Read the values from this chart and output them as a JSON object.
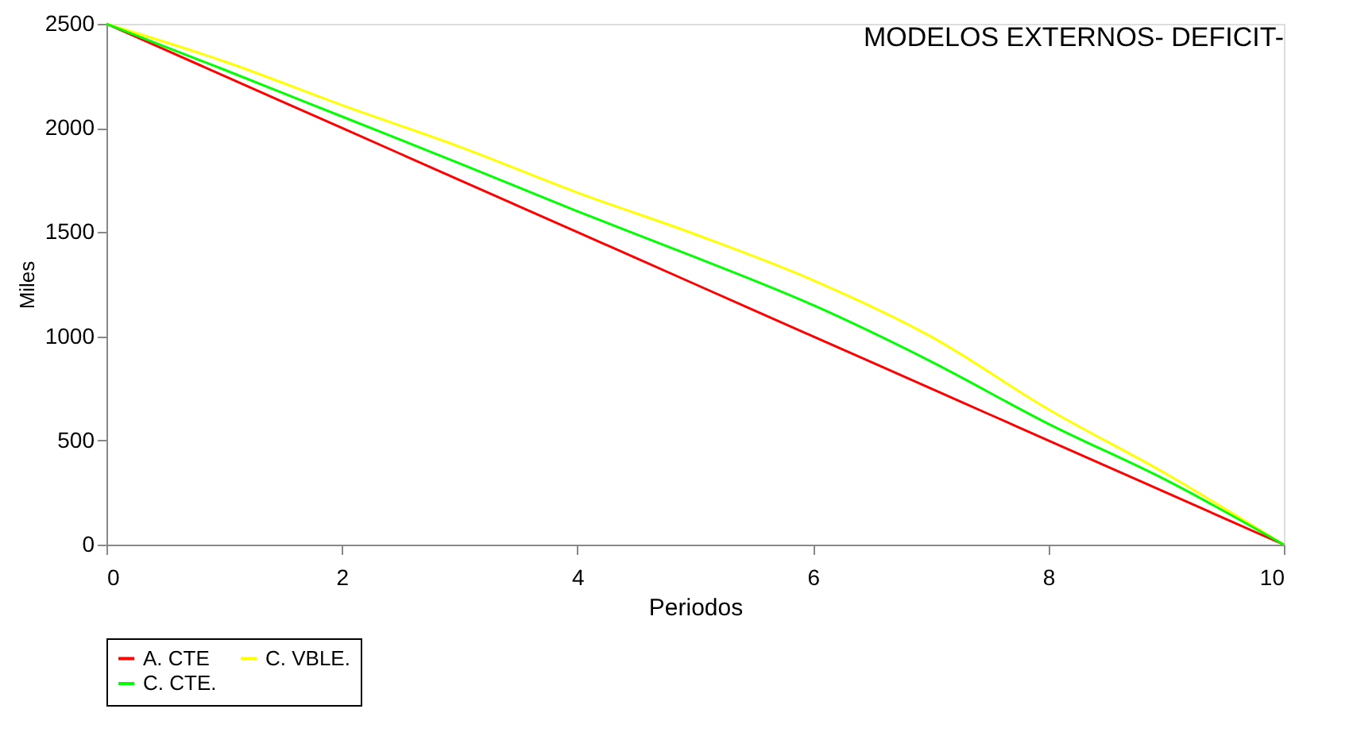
{
  "chart_data": {
    "type": "line",
    "title": "MODELOS EXTERNOS- DEFICIT-",
    "xlabel": "Periodos",
    "ylabel": "Miles",
    "x": [
      0,
      1,
      2,
      3,
      4,
      5,
      6,
      7,
      8,
      9,
      10
    ],
    "series": [
      {
        "name": "A. CTE",
        "color": "#ff0000",
        "values": [
          2500,
          2250,
          2000,
          1750,
          1500,
          1250,
          1000,
          750,
          500,
          250,
          0
        ]
      },
      {
        "name": "C. VBLE.",
        "color": "#ffff00",
        "values": [
          2500,
          2320,
          2110,
          1910,
          1690,
          1490,
          1270,
          1000,
          650,
          340,
          0
        ]
      },
      {
        "name": "C. CTE.",
        "color": "#00ff00",
        "values": [
          2500,
          2280,
          2055,
          1830,
          1600,
          1380,
          1150,
          880,
          580,
          310,
          0
        ]
      }
    ],
    "xlim": [
      0,
      10
    ],
    "xticks": [
      0,
      2,
      4,
      6,
      8,
      10
    ],
    "ylim": [
      0,
      2500
    ],
    "yticks": [
      0,
      500,
      1000,
      1500,
      2000,
      2500
    ],
    "grid": false,
    "legend": "bottom left",
    "marker": "none",
    "line_style": "solid"
  }
}
